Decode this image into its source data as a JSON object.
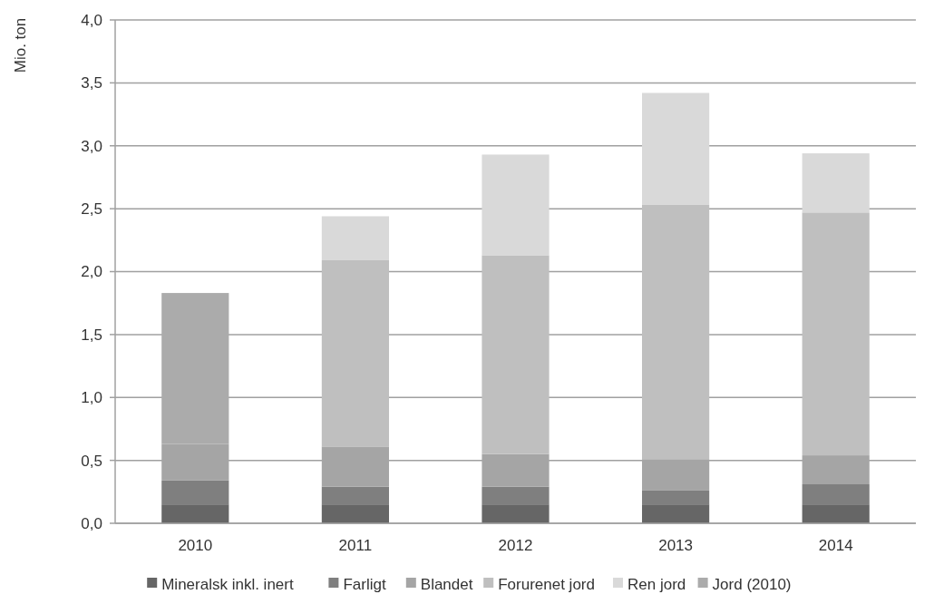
{
  "chart_data": {
    "type": "bar",
    "stacked": true,
    "ylabel": "Mio. ton",
    "categories": [
      "2010",
      "2011",
      "2012",
      "2013",
      "2014"
    ],
    "series": [
      {
        "name": "Mineralsk inkl. inert",
        "color": "#666666",
        "values": [
          0.15,
          0.15,
          0.15,
          0.15,
          0.15
        ]
      },
      {
        "name": "Farligt",
        "color": "#7f7f7f",
        "values": [
          0.19,
          0.14,
          0.14,
          0.11,
          0.16
        ]
      },
      {
        "name": "Blandet",
        "color": "#a5a5a5",
        "values": [
          0.29,
          0.32,
          0.26,
          0.25,
          0.23
        ]
      },
      {
        "name": "Forurenet jord",
        "color": "#bfbfbf",
        "values": [
          null,
          1.48,
          1.58,
          2.02,
          1.93
        ]
      },
      {
        "name": "Ren jord",
        "color": "#d9d9d9",
        "values": [
          null,
          0.35,
          0.8,
          0.89,
          0.47
        ]
      },
      {
        "name": "Jord (2010)",
        "color": "#ababab",
        "values": [
          1.2,
          null,
          null,
          null,
          null
        ]
      }
    ],
    "ylim": [
      0,
      4
    ],
    "yticks": [
      {
        "value": 0,
        "label": "0,0"
      },
      {
        "value": 0.5,
        "label": "0,5"
      },
      {
        "value": 1,
        "label": "1,0"
      },
      {
        "value": 1.5,
        "label": "1,5"
      },
      {
        "value": 2,
        "label": "2,0"
      },
      {
        "value": 2.5,
        "label": "2,5"
      },
      {
        "value": 3,
        "label": "3,0"
      },
      {
        "value": 3.5,
        "label": "3,5"
      },
      {
        "value": 4,
        "label": "4,0"
      }
    ],
    "grid": "y",
    "legend": "bottom"
  }
}
